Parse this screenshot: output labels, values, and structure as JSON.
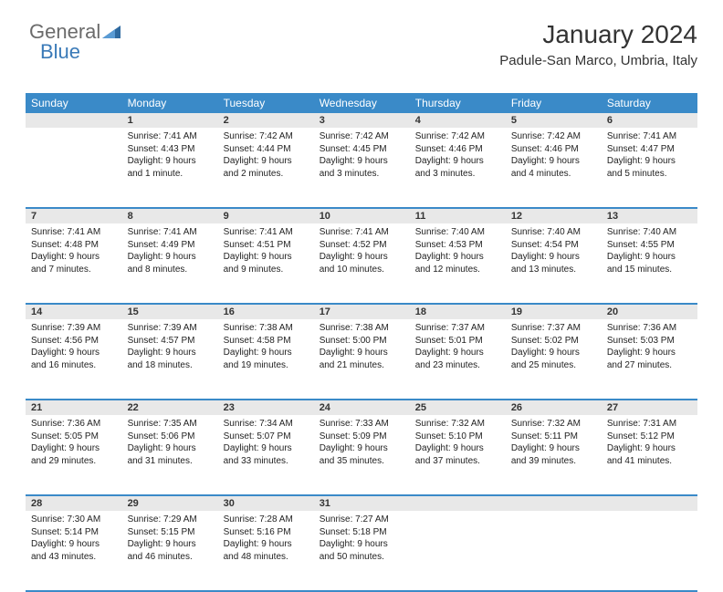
{
  "logo": {
    "text_general": "General",
    "text_blue": "Blue",
    "shape_color": "#2f6aa0"
  },
  "header": {
    "month_title": "January 2024",
    "location": "Padule-San Marco, Umbria, Italy"
  },
  "colors": {
    "header_bg": "#3a8ac8",
    "header_text": "#ffffff",
    "daynum_bg": "#e8e8e8",
    "row_divider": "#3a8ac8",
    "body_text": "#222222"
  },
  "weekdays": [
    "Sunday",
    "Monday",
    "Tuesday",
    "Wednesday",
    "Thursday",
    "Friday",
    "Saturday"
  ],
  "first_weekday_index": 1,
  "days": [
    {
      "n": 1,
      "sunrise": "7:41 AM",
      "sunset": "4:43 PM",
      "daylight": "9 hours and 1 minute."
    },
    {
      "n": 2,
      "sunrise": "7:42 AM",
      "sunset": "4:44 PM",
      "daylight": "9 hours and 2 minutes."
    },
    {
      "n": 3,
      "sunrise": "7:42 AM",
      "sunset": "4:45 PM",
      "daylight": "9 hours and 3 minutes."
    },
    {
      "n": 4,
      "sunrise": "7:42 AM",
      "sunset": "4:46 PM",
      "daylight": "9 hours and 3 minutes."
    },
    {
      "n": 5,
      "sunrise": "7:42 AM",
      "sunset": "4:46 PM",
      "daylight": "9 hours and 4 minutes."
    },
    {
      "n": 6,
      "sunrise": "7:41 AM",
      "sunset": "4:47 PM",
      "daylight": "9 hours and 5 minutes."
    },
    {
      "n": 7,
      "sunrise": "7:41 AM",
      "sunset": "4:48 PM",
      "daylight": "9 hours and 7 minutes."
    },
    {
      "n": 8,
      "sunrise": "7:41 AM",
      "sunset": "4:49 PM",
      "daylight": "9 hours and 8 minutes."
    },
    {
      "n": 9,
      "sunrise": "7:41 AM",
      "sunset": "4:51 PM",
      "daylight": "9 hours and 9 minutes."
    },
    {
      "n": 10,
      "sunrise": "7:41 AM",
      "sunset": "4:52 PM",
      "daylight": "9 hours and 10 minutes."
    },
    {
      "n": 11,
      "sunrise": "7:40 AM",
      "sunset": "4:53 PM",
      "daylight": "9 hours and 12 minutes."
    },
    {
      "n": 12,
      "sunrise": "7:40 AM",
      "sunset": "4:54 PM",
      "daylight": "9 hours and 13 minutes."
    },
    {
      "n": 13,
      "sunrise": "7:40 AM",
      "sunset": "4:55 PM",
      "daylight": "9 hours and 15 minutes."
    },
    {
      "n": 14,
      "sunrise": "7:39 AM",
      "sunset": "4:56 PM",
      "daylight": "9 hours and 16 minutes."
    },
    {
      "n": 15,
      "sunrise": "7:39 AM",
      "sunset": "4:57 PM",
      "daylight": "9 hours and 18 minutes."
    },
    {
      "n": 16,
      "sunrise": "7:38 AM",
      "sunset": "4:58 PM",
      "daylight": "9 hours and 19 minutes."
    },
    {
      "n": 17,
      "sunrise": "7:38 AM",
      "sunset": "5:00 PM",
      "daylight": "9 hours and 21 minutes."
    },
    {
      "n": 18,
      "sunrise": "7:37 AM",
      "sunset": "5:01 PM",
      "daylight": "9 hours and 23 minutes."
    },
    {
      "n": 19,
      "sunrise": "7:37 AM",
      "sunset": "5:02 PM",
      "daylight": "9 hours and 25 minutes."
    },
    {
      "n": 20,
      "sunrise": "7:36 AM",
      "sunset": "5:03 PM",
      "daylight": "9 hours and 27 minutes."
    },
    {
      "n": 21,
      "sunrise": "7:36 AM",
      "sunset": "5:05 PM",
      "daylight": "9 hours and 29 minutes."
    },
    {
      "n": 22,
      "sunrise": "7:35 AM",
      "sunset": "5:06 PM",
      "daylight": "9 hours and 31 minutes."
    },
    {
      "n": 23,
      "sunrise": "7:34 AM",
      "sunset": "5:07 PM",
      "daylight": "9 hours and 33 minutes."
    },
    {
      "n": 24,
      "sunrise": "7:33 AM",
      "sunset": "5:09 PM",
      "daylight": "9 hours and 35 minutes."
    },
    {
      "n": 25,
      "sunrise": "7:32 AM",
      "sunset": "5:10 PM",
      "daylight": "9 hours and 37 minutes."
    },
    {
      "n": 26,
      "sunrise": "7:32 AM",
      "sunset": "5:11 PM",
      "daylight": "9 hours and 39 minutes."
    },
    {
      "n": 27,
      "sunrise": "7:31 AM",
      "sunset": "5:12 PM",
      "daylight": "9 hours and 41 minutes."
    },
    {
      "n": 28,
      "sunrise": "7:30 AM",
      "sunset": "5:14 PM",
      "daylight": "9 hours and 43 minutes."
    },
    {
      "n": 29,
      "sunrise": "7:29 AM",
      "sunset": "5:15 PM",
      "daylight": "9 hours and 46 minutes."
    },
    {
      "n": 30,
      "sunrise": "7:28 AM",
      "sunset": "5:16 PM",
      "daylight": "9 hours and 48 minutes."
    },
    {
      "n": 31,
      "sunrise": "7:27 AM",
      "sunset": "5:18 PM",
      "daylight": "9 hours and 50 minutes."
    }
  ],
  "labels": {
    "sunrise": "Sunrise:",
    "sunset": "Sunset:",
    "daylight": "Daylight:"
  }
}
